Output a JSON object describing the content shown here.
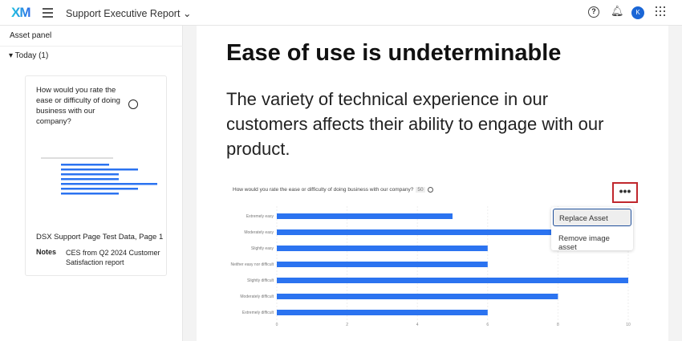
{
  "header": {
    "logo": "XM",
    "title": "Support Executive Report",
    "help": "?",
    "avatar": "K"
  },
  "asset_panel": {
    "title": "Asset panel",
    "group": "Today (1)",
    "card": {
      "question": "How would you rate the ease or difficulty of doing business with our company?",
      "name": "DSX Support Page Test Data, Page 1",
      "notes_label": "Notes",
      "notes": "CES from Q2 2024 Customer Satisfaction report"
    }
  },
  "slide": {
    "heading": "Ease of use is undeterminable",
    "body": "The variety of technical experience in our customers affects their ability to engage with our product."
  },
  "menu": {
    "more": "•••",
    "items": [
      "Replace Asset",
      "Remove image asset"
    ]
  },
  "chart_data": {
    "type": "bar",
    "orientation": "horizontal",
    "title": "How would you rate the ease or difficulty of doing business with our company?",
    "badge": "50",
    "categories": [
      "Extremely easy",
      "Moderately easy",
      "Slightly easy",
      "Neither easy nor difficult",
      "Slightly difficult",
      "Moderately difficult",
      "Extremely difficult"
    ],
    "values": [
      5,
      8,
      6,
      6,
      10,
      8,
      6
    ],
    "xlim": [
      0,
      10
    ],
    "xticks": [
      0,
      2,
      4,
      6,
      8,
      10
    ],
    "grid": true,
    "color": "#2b73f0"
  }
}
